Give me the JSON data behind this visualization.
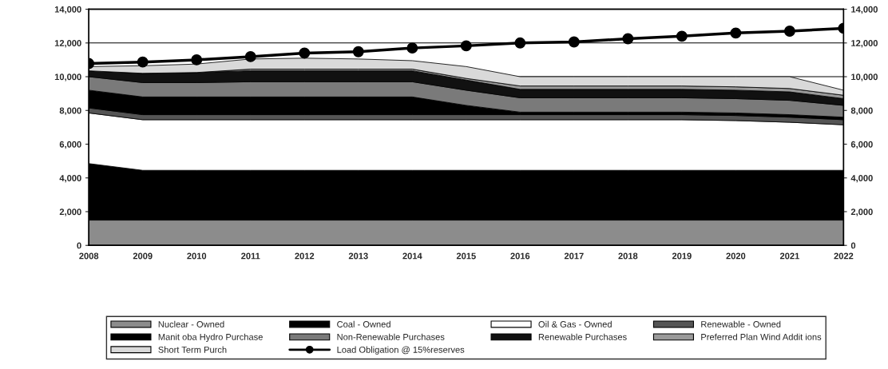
{
  "chart_data": {
    "type": "area",
    "stacked": true,
    "x": [
      2008,
      2009,
      2010,
      2011,
      2012,
      2013,
      2014,
      2015,
      2016,
      2017,
      2018,
      2019,
      2020,
      2021,
      2022
    ],
    "series": [
      {
        "name": "Nuclear - Owned",
        "color": "#8c8c8c",
        "values": [
          1500,
          1500,
          1500,
          1500,
          1500,
          1500,
          1500,
          1500,
          1500,
          1500,
          1500,
          1500,
          1500,
          1500,
          1500
        ]
      },
      {
        "name": "Coal - Owned",
        "color": "#000000",
        "values": [
          3350,
          2950,
          2950,
          2950,
          2950,
          2950,
          2950,
          2950,
          2950,
          2950,
          2950,
          2950,
          2950,
          2950,
          2950
        ]
      },
      {
        "name": "Oil & Gas - Owned",
        "color": "#ffffff",
        "values": [
          3000,
          3000,
          3000,
          3000,
          3000,
          3000,
          3000,
          3000,
          3000,
          3000,
          3000,
          3000,
          2950,
          2850,
          2700
        ]
      },
      {
        "name": "Renewable - Owned",
        "color": "#555555",
        "values": [
          300,
          300,
          300,
          300,
          300,
          300,
          300,
          300,
          300,
          300,
          300,
          300,
          300,
          300,
          300
        ]
      },
      {
        "name": "Manit oba Hydro Purchase",
        "color": "#000000",
        "values": [
          1050,
          1050,
          1050,
          1050,
          1050,
          1050,
          1050,
          550,
          150,
          150,
          150,
          150,
          150,
          150,
          150
        ]
      },
      {
        "name": "Non-Renewable Purchases",
        "color": "#7a7a7a",
        "values": [
          800,
          850,
          850,
          900,
          900,
          900,
          900,
          900,
          850,
          850,
          850,
          850,
          850,
          850,
          700
        ]
      },
      {
        "name": "Renewable Purchases",
        "color": "#111111",
        "values": [
          350,
          550,
          600,
          650,
          650,
          650,
          650,
          600,
          500,
          500,
          500,
          500,
          500,
          500,
          400
        ]
      },
      {
        "name": "Preferred Plan Wind Addit ions",
        "color": "#9a9a9a",
        "values": [
          0,
          0,
          0,
          100,
          100,
          100,
          100,
          100,
          200,
          200,
          200,
          200,
          200,
          200,
          200
        ]
      },
      {
        "name": "Short Term Purch",
        "color": "#d9d9d9",
        "values": [
          250,
          450,
          500,
          600,
          650,
          600,
          500,
          700,
          550,
          550,
          550,
          550,
          600,
          700,
          300
        ]
      },
      {
        "name": "Load Obligation @ 15%reserves",
        "type": "line",
        "color": "#000000",
        "marker": "circle",
        "values": [
          10780,
          10870,
          11000,
          11190,
          11400,
          11480,
          11700,
          11830,
          12000,
          12060,
          12250,
          12400,
          12590,
          12700,
          12870
        ]
      }
    ],
    "xlim": [
      2008,
      2022
    ],
    "xticks": [
      2008,
      2009,
      2010,
      2011,
      2012,
      2013,
      2014,
      2015,
      2016,
      2017,
      2018,
      2019,
      2020,
      2021,
      2022
    ],
    "ylim": [
      0,
      14000
    ],
    "yticks": [
      {
        "value": 0,
        "label": "0"
      },
      {
        "value": 2000,
        "label": "2,000"
      },
      {
        "value": 4000,
        "label": "4,000"
      },
      {
        "value": 6000,
        "label": "6,000"
      },
      {
        "value": 8000,
        "label": "8,000"
      },
      {
        "value": 10000,
        "label": "10,000"
      },
      {
        "value": 12000,
        "label": "12,000"
      },
      {
        "value": 14000,
        "label": "14,000"
      }
    ],
    "y2lim": [
      0,
      14000
    ],
    "y2ticks": [
      {
        "value": 0,
        "label": "0"
      },
      {
        "value": 2000,
        "label": "2,000"
      },
      {
        "value": 4000,
        "label": "4,000"
      },
      {
        "value": 6000,
        "label": "6,000"
      },
      {
        "value": 8000,
        "label": "8,000"
      },
      {
        "value": 10000,
        "label": "10,000"
      },
      {
        "value": 12000,
        "label": "12,000"
      },
      {
        "value": 14000,
        "label": "14,000"
      }
    ],
    "grid": "y",
    "legend": "bottom"
  }
}
